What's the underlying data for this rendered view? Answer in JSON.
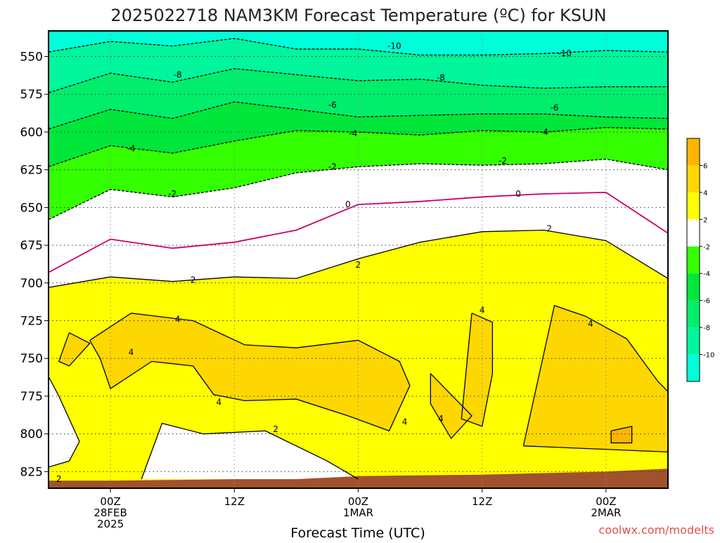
{
  "title": "2025022718 NAM3KM Forecast Temperature (ºC) for KSUN",
  "watermark": "coolwx.com/modelts",
  "chart_data": {
    "type": "heatmap",
    "title": "2025022718 NAM3KM Forecast Temperature (ºC) for KSUN",
    "xlabel": "Forecast Time (UTC)",
    "ylabel": "",
    "x_range_hours": [
      -6,
      54
    ],
    "x_ticks": [
      {
        "hours": 0,
        "lines": [
          "00Z",
          "28FEB",
          "2025"
        ]
      },
      {
        "hours": 12,
        "lines": [
          "12Z"
        ]
      },
      {
        "hours": 24,
        "lines": [
          "00Z",
          "1MAR"
        ]
      },
      {
        "hours": 36,
        "lines": [
          "12Z"
        ]
      },
      {
        "hours": 48,
        "lines": [
          "00Z",
          "2MAR"
        ]
      }
    ],
    "y_range_mb": [
      533,
      836
    ],
    "y_ticks": [
      550,
      575,
      600,
      625,
      650,
      675,
      700,
      725,
      750,
      775,
      800,
      825
    ],
    "grid": true,
    "legend_position": "right",
    "colorbar": {
      "colors": [
        "#00ffd9",
        "#00f59c",
        "#00ee6c",
        "#00e63a",
        "#33ff00",
        "#ffffff",
        "#ffff00",
        "#ffd700",
        "#ffb500"
      ],
      "tick_labels": [
        "-10",
        "-8",
        "-6",
        "-4",
        "-2",
        "2",
        "4",
        "6"
      ]
    },
    "colors": {
      "terrain": "#a0522d",
      "freezing_line": "#cc0066",
      "contour": "#000000"
    },
    "isotherms": [
      {
        "value": -10,
        "points": [
          [
            -6,
            547
          ],
          [
            0,
            540
          ],
          [
            6,
            543
          ],
          [
            12,
            538
          ],
          [
            18,
            545
          ],
          [
            24,
            545
          ],
          [
            30,
            549
          ],
          [
            36,
            549
          ],
          [
            42,
            548
          ],
          [
            48,
            546
          ],
          [
            54,
            547
          ]
        ]
      },
      {
        "value": -8,
        "points": [
          [
            -6,
            574
          ],
          [
            0,
            561
          ],
          [
            6,
            567
          ],
          [
            12,
            558
          ],
          [
            18,
            562
          ],
          [
            24,
            566
          ],
          [
            30,
            565
          ],
          [
            36,
            569
          ],
          [
            42,
            571
          ],
          [
            48,
            570
          ],
          [
            54,
            570
          ]
        ]
      },
      {
        "value": -6,
        "points": [
          [
            -6,
            598
          ],
          [
            0,
            585
          ],
          [
            6,
            591
          ],
          [
            12,
            580
          ],
          [
            18,
            585
          ],
          [
            24,
            590
          ],
          [
            30,
            589
          ],
          [
            36,
            588
          ],
          [
            42,
            588
          ],
          [
            48,
            590
          ],
          [
            54,
            591
          ]
        ]
      },
      {
        "value": -4,
        "points": [
          [
            -6,
            623
          ],
          [
            0,
            609
          ],
          [
            6,
            614
          ],
          [
            12,
            606
          ],
          [
            18,
            599
          ],
          [
            24,
            600
          ],
          [
            30,
            602
          ],
          [
            36,
            599
          ],
          [
            42,
            600
          ],
          [
            48,
            597
          ],
          [
            54,
            598
          ]
        ]
      },
      {
        "value": -2,
        "points": [
          [
            -6,
            658
          ],
          [
            0,
            638
          ],
          [
            6,
            643
          ],
          [
            12,
            637
          ],
          [
            18,
            627
          ],
          [
            24,
            623
          ],
          [
            30,
            621
          ],
          [
            36,
            622
          ],
          [
            42,
            621
          ],
          [
            48,
            618
          ],
          [
            54,
            625
          ]
        ]
      },
      {
        "value": 0,
        "points": [
          [
            -6,
            693
          ],
          [
            0,
            671
          ],
          [
            6,
            677
          ],
          [
            12,
            673
          ],
          [
            18,
            665
          ],
          [
            24,
            648
          ],
          [
            30,
            646
          ],
          [
            36,
            643
          ],
          [
            42,
            641
          ],
          [
            48,
            640
          ],
          [
            54,
            667
          ]
        ]
      },
      {
        "value": 2,
        "points": [
          [
            -6,
            703
          ],
          [
            0,
            696
          ],
          [
            6,
            699
          ],
          [
            12,
            696
          ],
          [
            18,
            697
          ],
          [
            24,
            684
          ],
          [
            30,
            673
          ],
          [
            36,
            666
          ],
          [
            42,
            665
          ],
          [
            48,
            672
          ],
          [
            54,
            697
          ]
        ]
      },
      {
        "value": 2,
        "points": [
          [
            -6,
            762
          ],
          [
            -5,
            775
          ],
          [
            -3,
            805
          ],
          [
            -4,
            818
          ],
          [
            -6,
            822
          ]
        ]
      },
      {
        "value": 2,
        "points": [
          [
            3,
            830
          ],
          [
            5,
            793
          ],
          [
            9,
            800
          ],
          [
            15,
            798
          ],
          [
            21,
            818
          ],
          [
            24,
            830
          ]
        ]
      },
      {
        "value": 4,
        "points": [
          [
            -2,
            738
          ],
          [
            2,
            720
          ],
          [
            8,
            725
          ],
          [
            13,
            741
          ],
          [
            18,
            743
          ],
          [
            24,
            738
          ],
          [
            28,
            752
          ],
          [
            29,
            768
          ],
          [
            27,
            798
          ],
          [
            23,
            788
          ],
          [
            18,
            777
          ],
          [
            13,
            778
          ],
          [
            10,
            774
          ],
          [
            8,
            755
          ],
          [
            4,
            752
          ],
          [
            0,
            770
          ],
          [
            -1,
            750
          ],
          [
            -2,
            738
          ]
        ]
      },
      {
        "value": 4,
        "points": [
          [
            -4,
            733
          ],
          [
            -2,
            740
          ],
          [
            -4,
            755
          ],
          [
            -5,
            752
          ],
          [
            -4,
            733
          ]
        ]
      },
      {
        "value": 4,
        "points": [
          [
            31,
            760
          ],
          [
            33,
            774
          ],
          [
            35,
            788
          ],
          [
            33,
            803
          ],
          [
            31,
            780
          ],
          [
            31,
            760
          ]
        ]
      },
      {
        "value": 4,
        "points": [
          [
            35,
            720
          ],
          [
            37,
            726
          ],
          [
            37,
            760
          ],
          [
            36,
            795
          ],
          [
            34,
            790
          ],
          [
            35,
            720
          ]
        ]
      },
      {
        "value": 4,
        "points": [
          [
            40,
            808
          ],
          [
            43,
            715
          ],
          [
            46,
            722
          ],
          [
            50,
            737
          ],
          [
            53,
            765
          ],
          [
            54,
            772
          ],
          [
            54,
            812
          ],
          [
            40,
            808
          ]
        ]
      },
      {
        "value": 6,
        "points": [
          [
            48.5,
            798
          ],
          [
            50.5,
            795
          ],
          [
            50.5,
            806
          ],
          [
            48.5,
            806
          ],
          [
            48.5,
            798
          ]
        ]
      }
    ],
    "contour_labels": [
      {
        "value": -10,
        "x": 27.5,
        "y": 543
      },
      {
        "value": -10,
        "x": 44,
        "y": 548
      },
      {
        "value": -8,
        "x": 6.5,
        "y": 562
      },
      {
        "value": -8,
        "x": 32,
        "y": 564
      },
      {
        "value": -6,
        "x": 21.5,
        "y": 582
      },
      {
        "value": -6,
        "x": 43,
        "y": 584
      },
      {
        "value": -4,
        "x": 2,
        "y": 611
      },
      {
        "value": -4,
        "x": 23.5,
        "y": 601
      },
      {
        "value": -4,
        "x": 42,
        "y": 600
      },
      {
        "value": -2,
        "x": 6,
        "y": 641
      },
      {
        "value": -2,
        "x": 21.5,
        "y": 623
      },
      {
        "value": -2,
        "x": 38,
        "y": 619
      },
      {
        "value": 0,
        "x": 23,
        "y": 648
      },
      {
        "value": 0,
        "x": 39.5,
        "y": 641
      },
      {
        "value": 2,
        "x": 8,
        "y": 698
      },
      {
        "value": 2,
        "x": 24,
        "y": 688
      },
      {
        "value": 2,
        "x": 42.5,
        "y": 664
      },
      {
        "value": 2,
        "x": 16,
        "y": 797
      },
      {
        "value": 2,
        "x": -5,
        "y": 830
      },
      {
        "value": 4,
        "x": 6.5,
        "y": 724
      },
      {
        "value": 4,
        "x": 2,
        "y": 746
      },
      {
        "value": 4,
        "x": 10.5,
        "y": 779
      },
      {
        "value": 4,
        "x": 28.5,
        "y": 792
      },
      {
        "value": 4,
        "x": 32,
        "y": 790
      },
      {
        "value": 4,
        "x": 36,
        "y": 718
      },
      {
        "value": 4,
        "x": 46.5,
        "y": 727
      }
    ],
    "terrain_top_mb": [
      [
        -6,
        831
      ],
      [
        0,
        831
      ],
      [
        12,
        830
      ],
      [
        18,
        830
      ],
      [
        24,
        828
      ],
      [
        36,
        827
      ],
      [
        42,
        826
      ],
      [
        48,
        825
      ],
      [
        54,
        823
      ]
    ]
  }
}
